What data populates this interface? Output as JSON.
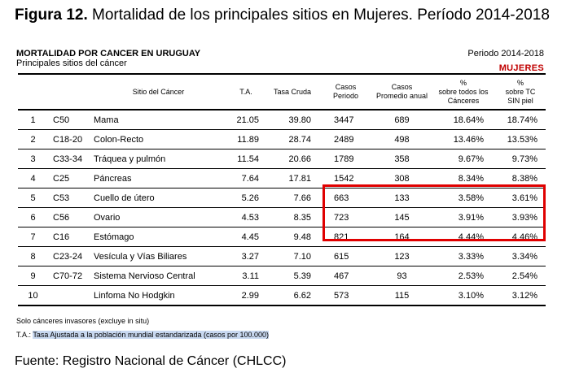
{
  "figure": {
    "number": "Figura 12.",
    "title": "Mortalidad de los principales sitios en Mujeres. Período 2014-2018"
  },
  "table_header": {
    "title": "MORTALIDAD POR CANCER EN URUGUAY",
    "subtitle": "Principales sitios del cáncer",
    "period": "Periodo 2014-2018",
    "sex": "MUJERES"
  },
  "columns": {
    "site": "Sitio del Cáncer",
    "ta": "T.A.",
    "tasa_cruda": "Tasa Cruda",
    "casos_periodo": [
      "Casos",
      "Periodo"
    ],
    "casos_promedio": [
      "Casos",
      "Promedio anual"
    ],
    "pct_todos": [
      "%",
      "sobre todos los",
      "Cánceres"
    ],
    "pct_sin_piel": [
      "%",
      "sobre TC",
      "SIN piel"
    ]
  },
  "rows": [
    {
      "rank": "1",
      "code": "C50",
      "site": "Mama",
      "ta": "21.05",
      "tasa_cruda": "39.80",
      "casos": "3447",
      "promedio": "689",
      "pct_todos": "18.64%",
      "pct_sin_piel": "18.74%"
    },
    {
      "rank": "2",
      "code": "C18-20",
      "site": "Colon-Recto",
      "ta": "11.89",
      "tasa_cruda": "28.74",
      "casos": "2489",
      "promedio": "498",
      "pct_todos": "13.46%",
      "pct_sin_piel": "13.53%"
    },
    {
      "rank": "3",
      "code": "C33-34",
      "site": "Tráquea y pulmón",
      "ta": "11.54",
      "tasa_cruda": "20.66",
      "casos": "1789",
      "promedio": "358",
      "pct_todos": "9.67%",
      "pct_sin_piel": "9.73%"
    },
    {
      "rank": "4",
      "code": "C25",
      "site": "Páncreas",
      "ta": "7.64",
      "tasa_cruda": "17.81",
      "casos": "1542",
      "promedio": "308",
      "pct_todos": "8.34%",
      "pct_sin_piel": "8.38%"
    },
    {
      "rank": "5",
      "code": "C53",
      "site": "Cuello de útero",
      "ta": "5.26",
      "tasa_cruda": "7.66",
      "casos": "663",
      "promedio": "133",
      "pct_todos": "3.58%",
      "pct_sin_piel": "3.61%"
    },
    {
      "rank": "6",
      "code": "C56",
      "site": "Ovario",
      "ta": "4.53",
      "tasa_cruda": "8.35",
      "casos": "723",
      "promedio": "145",
      "pct_todos": "3.91%",
      "pct_sin_piel": "3.93%"
    },
    {
      "rank": "7",
      "code": "C16",
      "site": "Estómago",
      "ta": "4.45",
      "tasa_cruda": "9.48",
      "casos": "821",
      "promedio": "164",
      "pct_todos": "4.44%",
      "pct_sin_piel": "4.46%"
    },
    {
      "rank": "8",
      "code": "C23-24",
      "site": "Vesícula y Vías Biliares",
      "ta": "3.27",
      "tasa_cruda": "7.10",
      "casos": "615",
      "promedio": "123",
      "pct_todos": "3.33%",
      "pct_sin_piel": "3.34%"
    },
    {
      "rank": "9",
      "code": "C70-72",
      "site": "Sistema Nervioso Central",
      "ta": "3.11",
      "tasa_cruda": "5.39",
      "casos": "467",
      "promedio": "93",
      "pct_todos": "2.53%",
      "pct_sin_piel": "2.54%"
    },
    {
      "rank": "10",
      "code": "",
      "site": "Linfoma No Hodgkin",
      "ta": "2.99",
      "tasa_cruda": "6.62",
      "casos": "573",
      "promedio": "115",
      "pct_todos": "3.10%",
      "pct_sin_piel": "3.12%"
    }
  ],
  "highlight": {
    "color": "#e00000",
    "rows": [
      "5",
      "6",
      "7"
    ]
  },
  "notes": {
    "invasive": "Solo cánceres invasores (excluye in situ)",
    "ta_prefix": "T.A.:",
    "ta_definition": "Tasa Ajustada a la población mundial estandarizada (casos por 100.000)"
  },
  "source": "Fuente: Registro Nacional de Cáncer (CHLCC)"
}
